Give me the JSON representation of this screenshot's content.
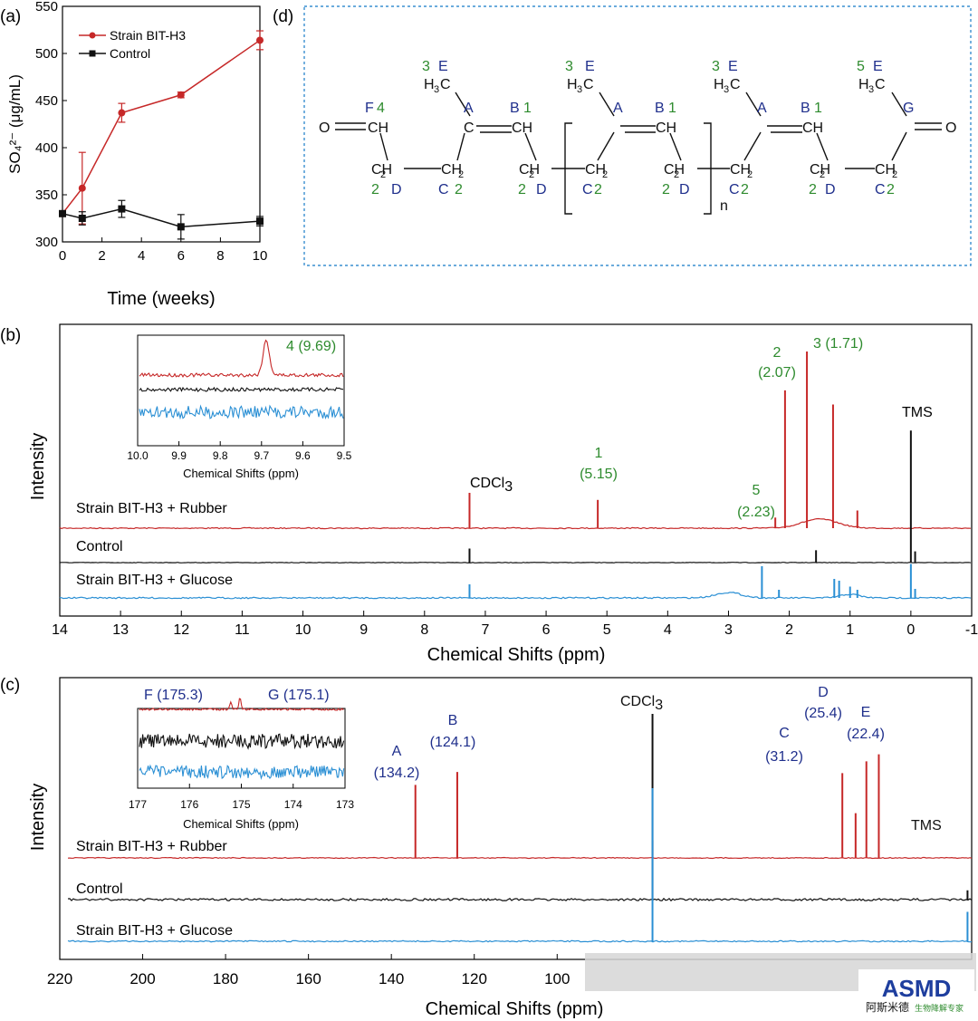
{
  "colors": {
    "rubber": "#c62828",
    "control": "#111111",
    "glucose": "#2a8fd4",
    "green_label": "#2e8b2e",
    "navy_label": "#1f2f8c",
    "box_border": "#3a8fd0"
  },
  "panel_labels": {
    "a": "(a)",
    "b": "(b)",
    "c": "(c)",
    "d": "(d)"
  },
  "chart_data": [
    {
      "id": "a",
      "type": "line",
      "xlabel": "Time (weeks)",
      "ylabel": "SO₄²⁻ (μg/mL)",
      "xlim": [
        0,
        10
      ],
      "ylim": [
        300,
        550
      ],
      "xticks": [
        0,
        2,
        4,
        6,
        8,
        10
      ],
      "yticks": [
        300,
        350,
        400,
        450,
        500,
        550
      ],
      "legend_position": "top-left",
      "series": [
        {
          "name": "Strain BIT-H3",
          "marker": "circle",
          "x": [
            0,
            1,
            3,
            6,
            10
          ],
          "y": [
            330,
            357,
            437,
            456,
            514
          ],
          "err": [
            0,
            38,
            10,
            3,
            10
          ]
        },
        {
          "name": "Control",
          "marker": "square",
          "x": [
            0,
            1,
            3,
            6,
            10
          ],
          "y": [
            330,
            325,
            335,
            316,
            322
          ],
          "err": [
            0,
            7,
            9,
            13,
            5
          ]
        }
      ]
    },
    {
      "id": "b",
      "type": "line",
      "subtype": "1H NMR spectrum",
      "xlabel": "Chemical Shifts (ppm)",
      "ylabel": "Intensity",
      "xlim": [
        14,
        -1
      ],
      "xticks": [
        14,
        13,
        12,
        11,
        10,
        9,
        8,
        7,
        6,
        5,
        4,
        3,
        2,
        1,
        0,
        -1
      ],
      "traces": [
        "Strain BIT-H3 + Rubber",
        "Control",
        "Strain BIT-H3 + Glucose"
      ],
      "peaks_rubber": [
        {
          "ppm": 7.26,
          "rel_height": 0.2
        },
        {
          "ppm": 5.15,
          "rel_height": 0.16
        },
        {
          "ppm": 2.23,
          "rel_height": 0.06
        },
        {
          "ppm": 2.07,
          "rel_height": 0.78
        },
        {
          "ppm": 1.71,
          "rel_height": 1.0
        },
        {
          "ppm": 1.28,
          "rel_height": 0.7
        },
        {
          "ppm": 0.88,
          "rel_height": 0.1
        }
      ],
      "peaks_control": [
        {
          "ppm": 7.26,
          "rel_height": 0.25
        },
        {
          "ppm": 1.56,
          "rel_height": 0.22
        },
        {
          "ppm": 0.0,
          "rel_height": 2.35
        },
        {
          "ppm": -0.07,
          "rel_height": 0.2
        }
      ],
      "peaks_glucose": [
        {
          "ppm": 7.26,
          "rel_height": 0.3
        },
        {
          "ppm": 2.45,
          "rel_height": 0.7
        },
        {
          "ppm": 2.17,
          "rel_height": 0.18
        },
        {
          "ppm": 1.26,
          "rel_height": 0.42
        },
        {
          "ppm": 1.18,
          "rel_height": 0.38
        },
        {
          "ppm": 1.0,
          "rel_height": 0.25
        },
        {
          "ppm": 0.88,
          "rel_height": 0.18
        },
        {
          "ppm": 0.0,
          "rel_height": 0.75
        },
        {
          "ppm": -0.07,
          "rel_height": 0.2
        }
      ],
      "annotations": [
        {
          "text": "CDCl3",
          "ppm": 7.26
        },
        {
          "text": "1",
          "text2": "(5.15)",
          "ppm": 5.15
        },
        {
          "text": "5",
          "text2": "(2.23)",
          "ppm": 2.23
        },
        {
          "text": "2",
          "text2": "(2.07)",
          "ppm": 2.07
        },
        {
          "text": "3 (1.71)",
          "ppm": 1.71
        },
        {
          "text": "TMS",
          "ppm": 0.0
        }
      ],
      "inset": {
        "xlabel": "Chemical Shifts (ppm)",
        "xlim": [
          10.0,
          9.5
        ],
        "xticks": [
          "10.0",
          "9.9",
          "9.8",
          "9.7",
          "9.6",
          "9.5"
        ],
        "annotation": "4 (9.69)"
      }
    },
    {
      "id": "c",
      "type": "line",
      "subtype": "13C NMR spectrum",
      "xlabel": "Chemical Shifts (ppm)",
      "ylabel": "Intensity",
      "xlim": [
        220,
        0
      ],
      "xticks": [
        220,
        200,
        180,
        160,
        140,
        120,
        100
      ],
      "traces": [
        "Strain BIT-H3 + Rubber",
        "Control",
        "Strain BIT-H3 + Glucose"
      ],
      "peaks_rubber": [
        {
          "ppm": 134.2,
          "rel_height": 0.62
        },
        {
          "ppm": 124.1,
          "rel_height": 0.73
        },
        {
          "ppm": 77.0,
          "rel_height": 0.15
        },
        {
          "ppm": 31.2,
          "rel_height": 0.72
        },
        {
          "ppm": 28.0,
          "rel_height": 0.38
        },
        {
          "ppm": 25.4,
          "rel_height": 0.82
        },
        {
          "ppm": 22.4,
          "rel_height": 0.88
        }
      ],
      "peaks_control": [
        {
          "ppm": 77.0,
          "rel_height": 1.0
        },
        {
          "ppm": 1.0,
          "rel_height": 0.05
        }
      ],
      "peaks_glucose": [
        {
          "ppm": 77.0,
          "rel_height": 1.3
        },
        {
          "ppm": 1.0,
          "rel_height": 0.25
        }
      ],
      "annotations": [
        {
          "text": "A",
          "text2": "(134.2)",
          "ppm": 134.2
        },
        {
          "text": "B",
          "text2": "(124.1)",
          "ppm": 124.1
        },
        {
          "text": "CDCl3",
          "ppm": 77.0
        },
        {
          "text": "C",
          "text2": "(31.2)",
          "ppm": 31.2
        },
        {
          "text": "D",
          "text2": "(25.4)",
          "ppm": 25.4
        },
        {
          "text": "E",
          "text2": "(22.4)",
          "ppm": 22.4
        },
        {
          "text": "TMS",
          "ppm": 0.0
        }
      ],
      "inset": {
        "xlabel": "Chemical Shifts (ppm)",
        "xlim": [
          177,
          173
        ],
        "xticks": [
          "177",
          "176",
          "175",
          "174",
          "173"
        ],
        "annotation_left": "F (175.3)",
        "annotation_right": "G (175.1)"
      }
    }
  ],
  "structure": {
    "n_label": "n",
    "carbonyl_O_left": "O",
    "carbonyl_O_right": "O",
    "CH": "CH",
    "C": "C",
    "CH2": "CH",
    "H3C": "H",
    "labels": {
      "F": "F",
      "four": "4",
      "A": "A",
      "B": "B",
      "one": "1",
      "three": "3",
      "E": "E",
      "five": "5",
      "G": "G",
      "C": "C",
      "D": "D",
      "two": "2"
    }
  },
  "watermark": {
    "logo": "ASMD",
    "subtitle": "阿斯米德",
    "tagline": "生物降解专家"
  }
}
